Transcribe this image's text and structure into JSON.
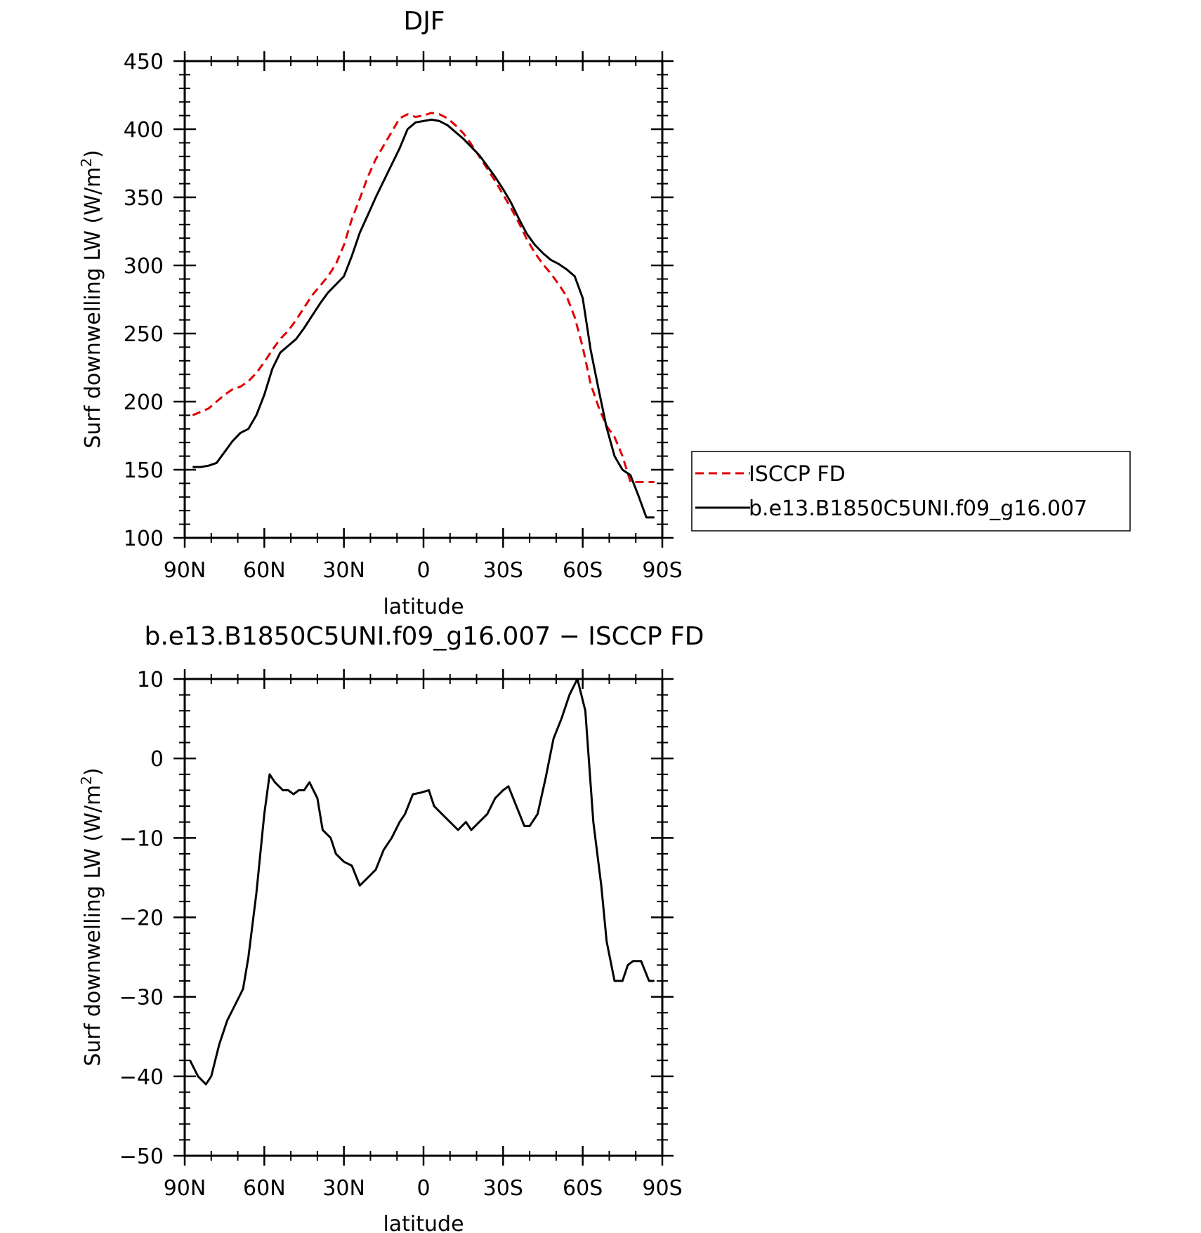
{
  "chart_data": [
    {
      "type": "line",
      "title": "DJF",
      "xlabel": "latitude",
      "ylabel_main": "Surf downwelling LW (W/m",
      "ylabel_sup": "2",
      "ylabel_close": ")",
      "xticks": [
        {
          "value": 90,
          "label": "90N"
        },
        {
          "value": 60,
          "label": "60N"
        },
        {
          "value": 30,
          "label": "30N"
        },
        {
          "value": 0,
          "label": "0"
        },
        {
          "value": -30,
          "label": "30S"
        },
        {
          "value": -60,
          "label": "60S"
        },
        {
          "value": -90,
          "label": "90S"
        }
      ],
      "xlim": [
        90,
        -90
      ],
      "ylim": [
        100,
        450
      ],
      "yticks": [
        {
          "value": 100,
          "label": "100"
        },
        {
          "value": 150,
          "label": "150"
        },
        {
          "value": 200,
          "label": "200"
        },
        {
          "value": 250,
          "label": "250"
        },
        {
          "value": 300,
          "label": "300"
        },
        {
          "value": 350,
          "label": "350"
        },
        {
          "value": 400,
          "label": "400"
        },
        {
          "value": 450,
          "label": "450"
        }
      ],
      "legend": {
        "placement": "outside-right"
      },
      "series": [
        {
          "name": "ISCCP FD",
          "color": "#e00000",
          "dash": true,
          "x": [
            87,
            81,
            78,
            75,
            72,
            69,
            66,
            63,
            60,
            57,
            54,
            51,
            48,
            45,
            42,
            39,
            36,
            33,
            30,
            27,
            24,
            21,
            18,
            15,
            12,
            9,
            6,
            3,
            0,
            -3,
            -6,
            -9,
            -12,
            -15,
            -18,
            -21,
            -24,
            -27,
            -30,
            -33,
            -36,
            -39,
            -42,
            -45,
            -48,
            -51,
            -54,
            -57,
            -60,
            -63,
            -66,
            -69,
            -72,
            -75,
            -78,
            -81,
            -84,
            -87
          ],
          "y": [
            190,
            195,
            200,
            205,
            209,
            211,
            215,
            221,
            229,
            238,
            246,
            252,
            260,
            269,
            278,
            285,
            292,
            301,
            315,
            334,
            349,
            365,
            378,
            388,
            398,
            408,
            411,
            409,
            410,
            412,
            411,
            408,
            403,
            397,
            389,
            380,
            371,
            362,
            352,
            342,
            331,
            319,
            309,
            301,
            294,
            286,
            277,
            262,
            240,
            213,
            196,
            182,
            174,
            160,
            141,
            141,
            141,
            141
          ]
        },
        {
          "name": "b.e13.B1850C5UNI.f09_g16.007",
          "color": "#000000",
          "dash": false,
          "x": [
            87,
            84,
            81,
            78,
            75,
            72,
            69,
            66,
            63,
            60,
            57,
            54,
            51,
            48,
            45,
            42,
            39,
            36,
            33,
            30,
            27,
            24,
            21,
            18,
            15,
            12,
            9,
            6,
            3,
            0,
            -3,
            -6,
            -9,
            -12,
            -15,
            -18,
            -21,
            -24,
            -27,
            -30,
            -33,
            -36,
            -39,
            -42,
            -45,
            -48,
            -51,
            -54,
            -57,
            -60,
            -63,
            -66,
            -69,
            -72,
            -75,
            -78,
            -81,
            -84,
            -87
          ],
          "y": [
            152,
            152,
            153,
            155,
            163,
            171,
            177,
            180,
            190,
            205,
            224,
            236,
            241,
            246,
            254,
            263,
            272,
            280,
            286,
            292,
            307,
            324,
            337,
            350,
            362,
            374,
            386,
            400,
            405,
            406,
            407,
            406,
            403,
            398,
            393,
            387,
            381,
            373,
            365,
            356,
            346,
            334,
            323,
            315,
            309,
            304,
            301,
            297,
            292,
            276,
            238,
            209,
            181,
            160,
            150,
            146,
            131,
            115,
            115
          ]
        }
      ]
    },
    {
      "type": "line",
      "title": "b.e13.B1850C5UNI.f09_g16.007 − ISCCP FD",
      "xlabel": "latitude",
      "ylabel_main": "Surf downwelling LW (W/m",
      "ylabel_sup": "2",
      "ylabel_close": ")",
      "xticks": [
        {
          "value": 90,
          "label": "90N"
        },
        {
          "value": 60,
          "label": "60N"
        },
        {
          "value": 30,
          "label": "30N"
        },
        {
          "value": 0,
          "label": "0"
        },
        {
          "value": -30,
          "label": "30S"
        },
        {
          "value": -60,
          "label": "60S"
        },
        {
          "value": -90,
          "label": "90S"
        }
      ],
      "xlim": [
        90,
        -90
      ],
      "ylim": [
        -50,
        10
      ],
      "yticks": [
        {
          "value": -50,
          "label": "−50"
        },
        {
          "value": -40,
          "label": "−40"
        },
        {
          "value": -30,
          "label": "−30"
        },
        {
          "value": -20,
          "label": "−20"
        },
        {
          "value": -10,
          "label": "−10"
        },
        {
          "value": 0,
          "label": "0"
        },
        {
          "value": 10,
          "label": "10"
        }
      ],
      "series": [
        {
          "name": "",
          "color": "#000000",
          "dash": false,
          "x": [
            88,
            85,
            82,
            80,
            77,
            74,
            71,
            68,
            66,
            63,
            60,
            58,
            56,
            53,
            51,
            49,
            47,
            45,
            43,
            40,
            38,
            35,
            33,
            30,
            27,
            24,
            21,
            18,
            15,
            12,
            9,
            7,
            4,
            1,
            -2,
            -4,
            -7,
            -10,
            -13,
            -16,
            -18,
            -21,
            -24,
            -27,
            -30,
            -32,
            -35,
            -38,
            -40,
            -43,
            -46,
            -49,
            -52,
            -55,
            -58,
            -61,
            -64,
            -67,
            -69,
            -72,
            -75,
            -77,
            -79,
            -82,
            -85,
            -87
          ],
          "y": [
            -38,
            -40,
            -41,
            -40,
            -36,
            -33,
            -31,
            -29,
            -25,
            -17,
            -7,
            -2,
            -3,
            -4,
            -4,
            -4.5,
            -4,
            -4,
            -3,
            -5,
            -9,
            -10,
            -12,
            -13,
            -13.5,
            -16,
            -15,
            -14,
            -11.5,
            -10,
            -8,
            -7,
            -4.5,
            -4.3,
            -4,
            -6,
            -7,
            -8,
            -9,
            -8,
            -9,
            -8,
            -7,
            -5,
            -4,
            -3.5,
            -6,
            -8.5,
            -8.5,
            -7,
            -2.5,
            2.5,
            5,
            8,
            10,
            6,
            -8,
            -16,
            -23,
            -28,
            -28,
            -26,
            -25.5,
            -25.5,
            -28,
            -28
          ]
        }
      ]
    }
  ]
}
